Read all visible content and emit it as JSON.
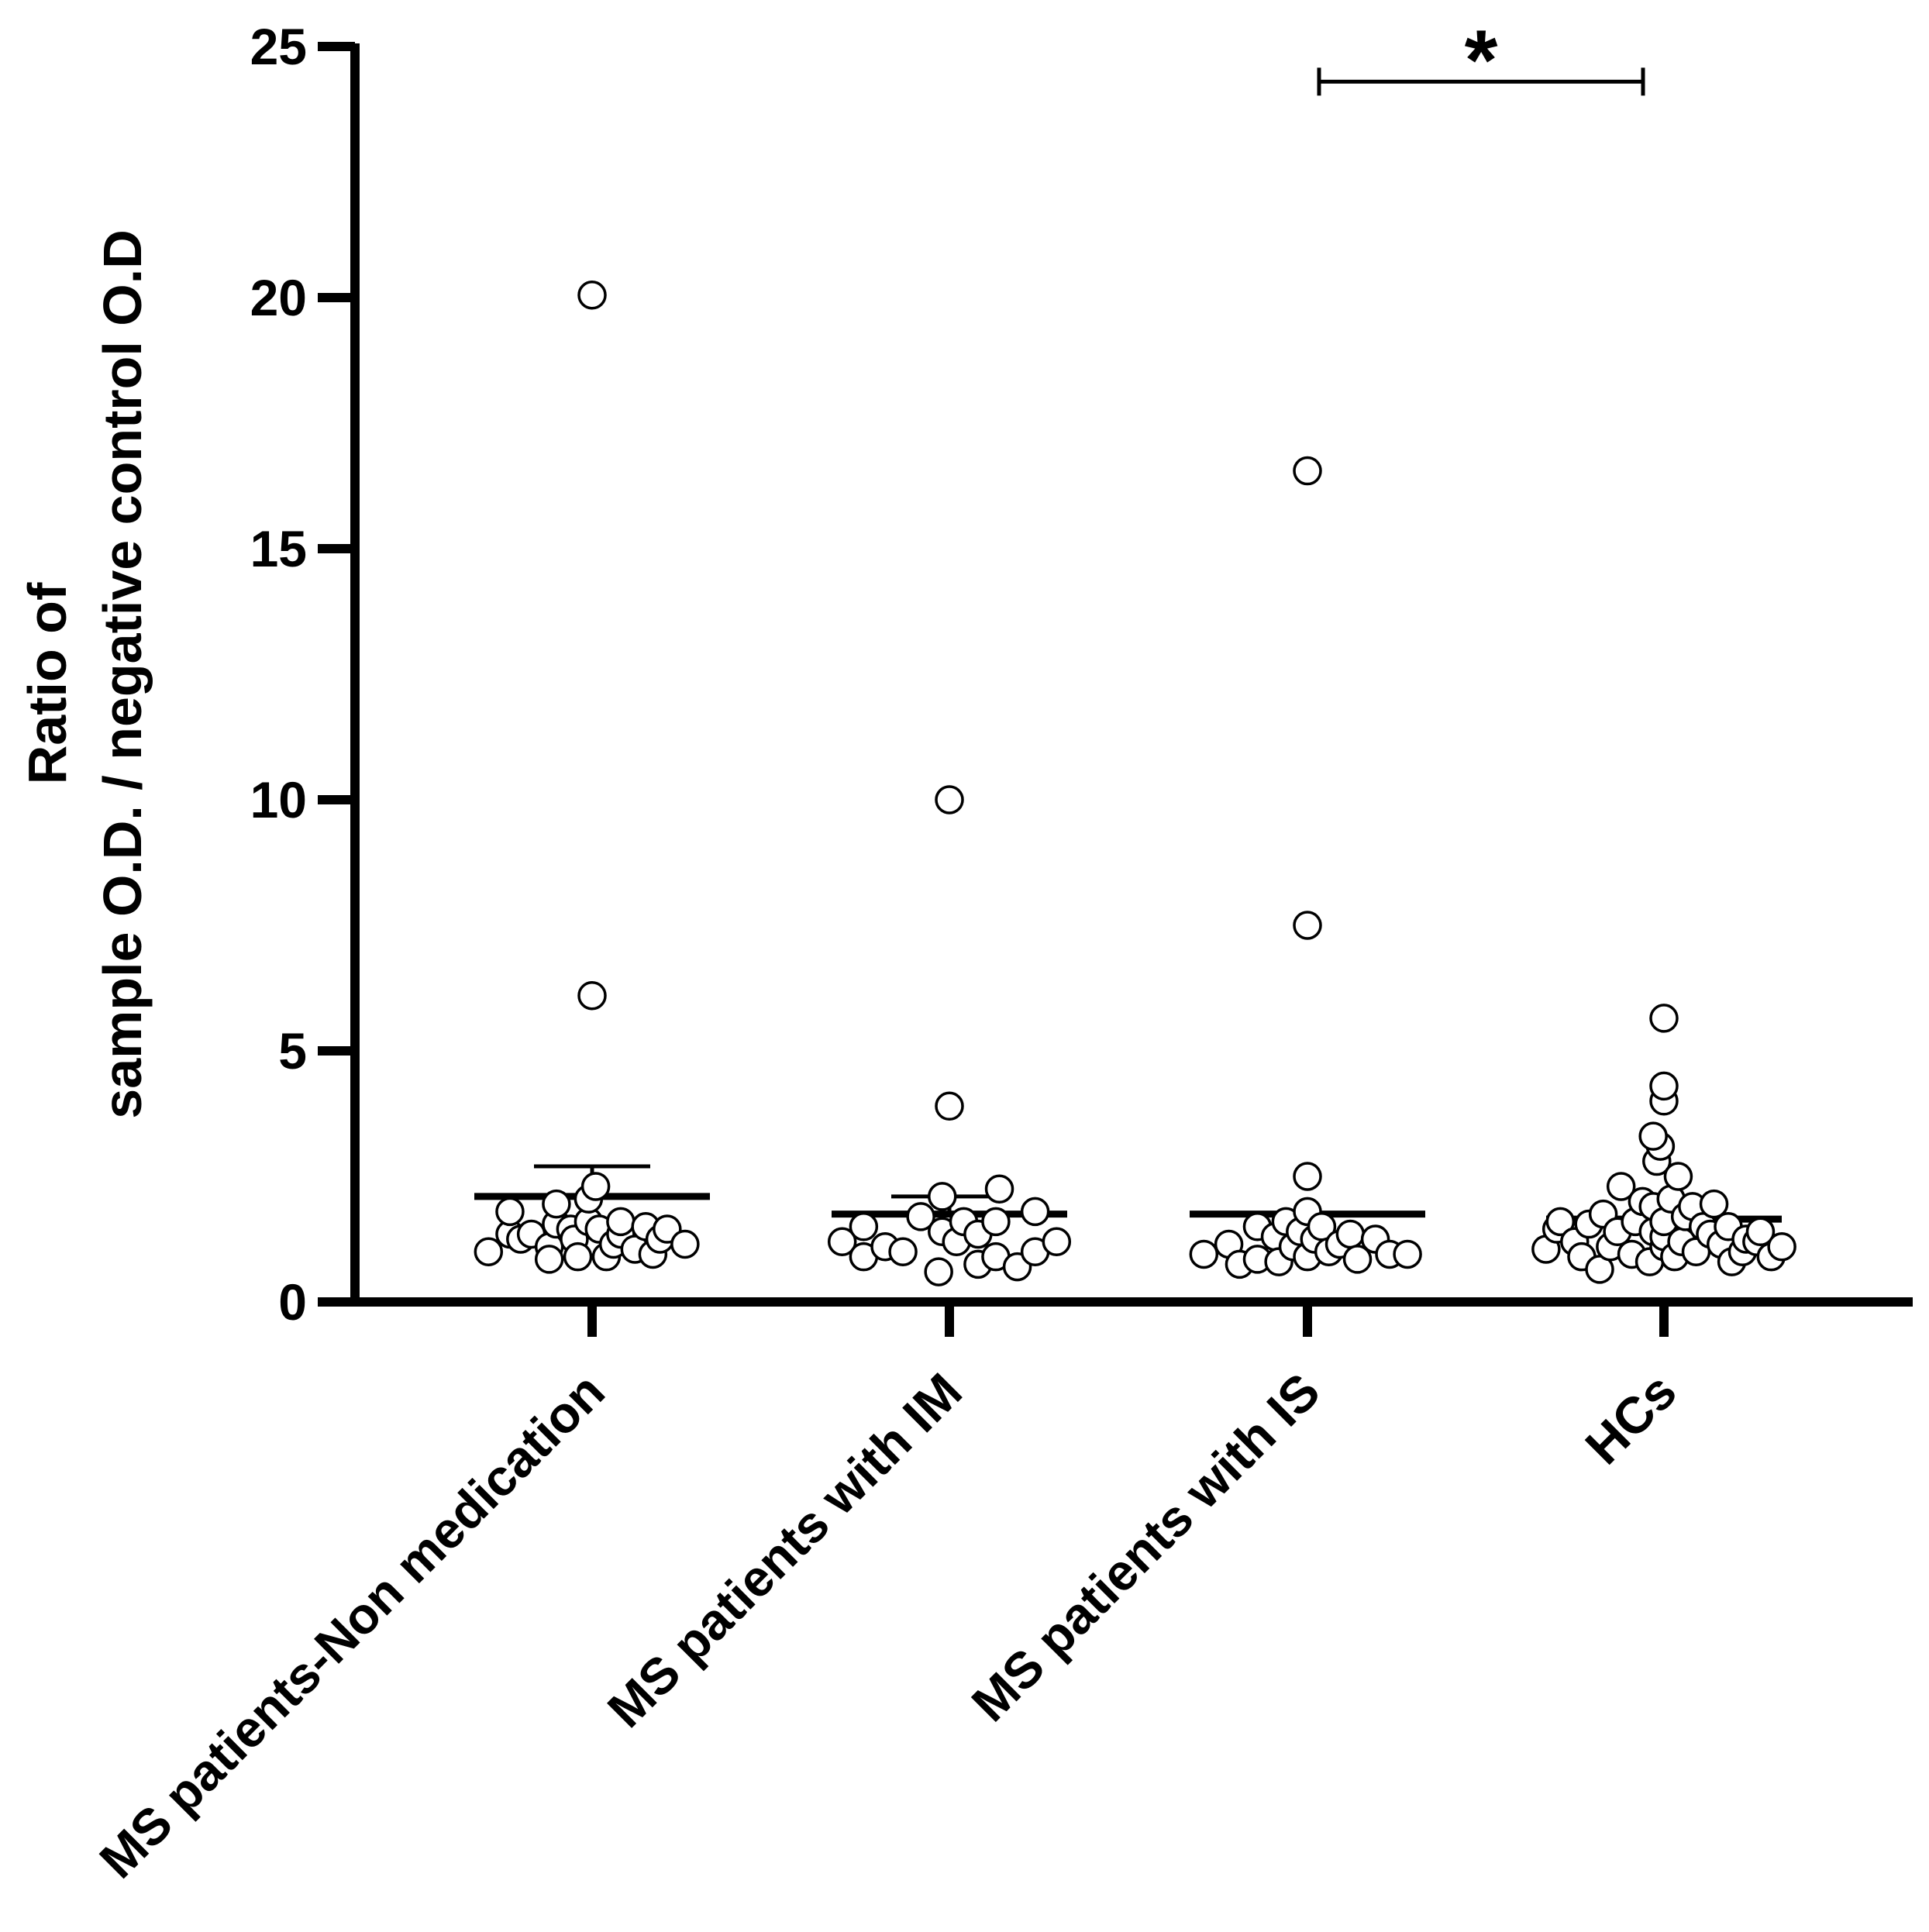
{
  "chart_data": {
    "type": "scatter",
    "subtype": "dot-plot-with-mean-and-error",
    "title": "",
    "ylabel_lines": [
      "Ratio of",
      "sample O.D. / negative control O.D"
    ],
    "xlabel": "",
    "ylim": [
      0,
      25
    ],
    "yticks": [
      0,
      5,
      10,
      15,
      20,
      25
    ],
    "grid": false,
    "legend": "none",
    "categories": [
      "MS patients-Non medication",
      "MS patients with IM",
      "MS patients with IS",
      "HCs"
    ],
    "groups": [
      {
        "name": "MS patients-Non medication",
        "mean": 2.1,
        "error_upper": 2.7,
        "points": [
          {
            "offset": -0.29,
            "y": 1.0
          },
          {
            "offset": -0.23,
            "y": 1.35
          },
          {
            "offset": -0.23,
            "y": 1.8
          },
          {
            "offset": -0.2,
            "y": 1.25
          },
          {
            "offset": -0.17,
            "y": 1.35
          },
          {
            "offset": -0.12,
            "y": 1.1
          },
          {
            "offset": -0.12,
            "y": 0.85
          },
          {
            "offset": -0.1,
            "y": 1.55
          },
          {
            "offset": -0.1,
            "y": 1.95
          },
          {
            "offset": -0.06,
            "y": 1.45
          },
          {
            "offset": -0.05,
            "y": 1.25
          },
          {
            "offset": -0.04,
            "y": 0.9
          },
          {
            "offset": -0.01,
            "y": 1.6
          },
          {
            "offset": -0.01,
            "y": 2.05
          },
          {
            "offset": 0.01,
            "y": 2.3
          },
          {
            "offset": 0.02,
            "y": 1.45
          },
          {
            "offset": 0.04,
            "y": 0.9
          },
          {
            "offset": 0.06,
            "y": 1.15
          },
          {
            "offset": 0.08,
            "y": 1.35
          },
          {
            "offset": 0.08,
            "y": 1.6
          },
          {
            "offset": 0.12,
            "y": 1.05
          },
          {
            "offset": 0.15,
            "y": 1.5
          },
          {
            "offset": 0.17,
            "y": 0.95
          },
          {
            "offset": 0.19,
            "y": 1.25
          },
          {
            "offset": 0.21,
            "y": 1.45
          },
          {
            "offset": 0.26,
            "y": 1.15
          },
          {
            "offset": 0.0,
            "y": 6.1
          },
          {
            "offset": 0.0,
            "y": 20.05
          }
        ]
      },
      {
        "name": "MS patients with IM",
        "mean": 1.75,
        "error_upper": 2.1,
        "points": [
          {
            "offset": -0.3,
            "y": 1.2
          },
          {
            "offset": -0.24,
            "y": 0.9
          },
          {
            "offset": -0.24,
            "y": 1.5
          },
          {
            "offset": -0.18,
            "y": 1.1
          },
          {
            "offset": -0.13,
            "y": 1.0
          },
          {
            "offset": -0.08,
            "y": 1.7
          },
          {
            "offset": -0.03,
            "y": 0.6
          },
          {
            "offset": -0.02,
            "y": 1.4
          },
          {
            "offset": -0.02,
            "y": 2.1
          },
          {
            "offset": 0.02,
            "y": 1.2
          },
          {
            "offset": 0.04,
            "y": 1.6
          },
          {
            "offset": 0.08,
            "y": 0.75
          },
          {
            "offset": 0.08,
            "y": 1.35
          },
          {
            "offset": 0.13,
            "y": 0.9
          },
          {
            "offset": 0.13,
            "y": 1.6
          },
          {
            "offset": 0.14,
            "y": 2.25
          },
          {
            "offset": 0.19,
            "y": 0.7
          },
          {
            "offset": 0.24,
            "y": 1.0
          },
          {
            "offset": 0.24,
            "y": 1.8
          },
          {
            "offset": 0.3,
            "y": 1.2
          },
          {
            "offset": 0.0,
            "y": 3.9
          },
          {
            "offset": 0.0,
            "y": 10.0
          }
        ]
      },
      {
        "name": "MS patients with IS",
        "mean": 1.75,
        "error_upper": null,
        "points": [
          {
            "offset": -0.29,
            "y": 0.95
          },
          {
            "offset": -0.22,
            "y": 1.15
          },
          {
            "offset": -0.19,
            "y": 0.75
          },
          {
            "offset": -0.14,
            "y": 0.85
          },
          {
            "offset": -0.14,
            "y": 1.5
          },
          {
            "offset": -0.09,
            "y": 1.3
          },
          {
            "offset": -0.08,
            "y": 0.8
          },
          {
            "offset": -0.06,
            "y": 1.6
          },
          {
            "offset": -0.04,
            "y": 1.1
          },
          {
            "offset": -0.02,
            "y": 1.4
          },
          {
            "offset": 0.0,
            "y": 0.9
          },
          {
            "offset": 0.0,
            "y": 1.8
          },
          {
            "offset": 0.0,
            "y": 2.5
          },
          {
            "offset": 0.02,
            "y": 1.25
          },
          {
            "offset": 0.04,
            "y": 1.5
          },
          {
            "offset": 0.06,
            "y": 1.0
          },
          {
            "offset": 0.09,
            "y": 1.15
          },
          {
            "offset": 0.12,
            "y": 1.35
          },
          {
            "offset": 0.14,
            "y": 0.85
          },
          {
            "offset": 0.19,
            "y": 1.25
          },
          {
            "offset": 0.23,
            "y": 0.95
          },
          {
            "offset": 0.28,
            "y": 0.95
          },
          {
            "offset": 0.0,
            "y": 7.5
          },
          {
            "offset": 0.0,
            "y": 16.55
          }
        ]
      },
      {
        "name": "HCs",
        "mean": 1.65,
        "error_upper": null,
        "points": [
          {
            "offset": -0.33,
            "y": 1.05
          },
          {
            "offset": -0.3,
            "y": 1.45
          },
          {
            "offset": -0.29,
            "y": 1.6
          },
          {
            "offset": -0.25,
            "y": 1.2
          },
          {
            "offset": -0.23,
            "y": 0.9
          },
          {
            "offset": -0.21,
            "y": 1.55
          },
          {
            "offset": -0.18,
            "y": 0.65
          },
          {
            "offset": -0.17,
            "y": 1.75
          },
          {
            "offset": -0.15,
            "y": 1.1
          },
          {
            "offset": -0.13,
            "y": 1.4
          },
          {
            "offset": -0.12,
            "y": 2.3
          },
          {
            "offset": -0.09,
            "y": 0.95
          },
          {
            "offset": -0.08,
            "y": 1.6
          },
          {
            "offset": -0.06,
            "y": 2.0
          },
          {
            "offset": -0.04,
            "y": 0.8
          },
          {
            "offset": -0.03,
            "y": 1.4
          },
          {
            "offset": -0.03,
            "y": 1.9
          },
          {
            "offset": -0.02,
            "y": 2.8
          },
          {
            "offset": 0.0,
            "y": 1.1
          },
          {
            "offset": 0.0,
            "y": 1.3
          },
          {
            "offset": 0.0,
            "y": 1.6
          },
          {
            "offset": 0.02,
            "y": 2.05
          },
          {
            "offset": 0.03,
            "y": 0.9
          },
          {
            "offset": 0.04,
            "y": 2.5
          },
          {
            "offset": 0.05,
            "y": 1.2
          },
          {
            "offset": 0.06,
            "y": 1.7
          },
          {
            "offset": 0.08,
            "y": 1.9
          },
          {
            "offset": 0.09,
            "y": 1.0
          },
          {
            "offset": 0.11,
            "y": 1.5
          },
          {
            "offset": 0.13,
            "y": 1.35
          },
          {
            "offset": 0.14,
            "y": 1.95
          },
          {
            "offset": 0.16,
            "y": 1.15
          },
          {
            "offset": 0.18,
            "y": 1.5
          },
          {
            "offset": 0.19,
            "y": 0.8
          },
          {
            "offset": 0.22,
            "y": 1.0
          },
          {
            "offset": 0.23,
            "y": 1.25
          },
          {
            "offset": 0.26,
            "y": 1.2
          },
          {
            "offset": 0.27,
            "y": 1.4
          },
          {
            "offset": 0.3,
            "y": 0.9
          },
          {
            "offset": 0.33,
            "y": 1.1
          },
          {
            "offset": -0.01,
            "y": 3.1
          },
          {
            "offset": -0.03,
            "y": 3.3
          },
          {
            "offset": 0.0,
            "y": 4.0
          },
          {
            "offset": 0.0,
            "y": 4.3
          },
          {
            "offset": 0.0,
            "y": 5.65
          }
        ]
      }
    ],
    "annotations": [
      {
        "type": "significance-bracket",
        "from": "MS patients with IS",
        "to": "HCs",
        "y": 24.3,
        "label": "*"
      }
    ]
  }
}
